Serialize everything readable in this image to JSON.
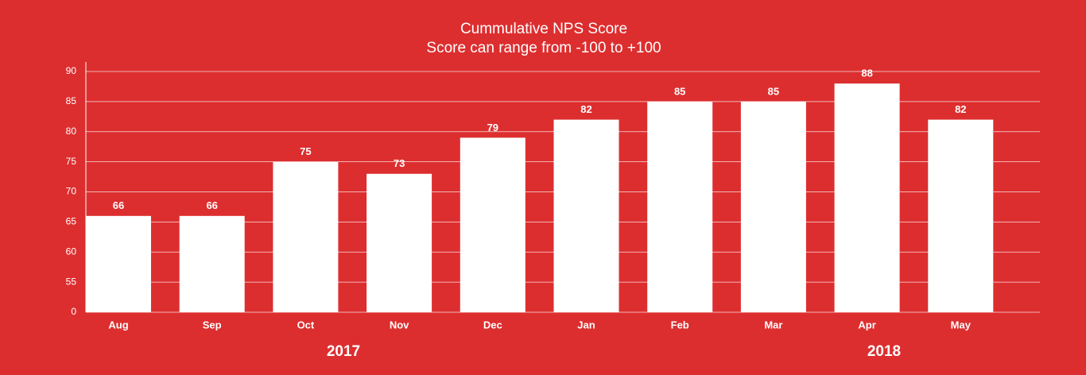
{
  "chart_data": {
    "type": "bar",
    "title": "Cummulative NPS Score",
    "subtitle": "Score can range from -100 to +100",
    "categories": [
      "Aug",
      "Sep",
      "Oct",
      "Nov",
      "Dec",
      "Jan",
      "Feb",
      "Mar",
      "Apr",
      "May"
    ],
    "values": [
      66,
      66,
      75,
      73,
      79,
      82,
      85,
      85,
      88,
      82
    ],
    "color": "#ffffff",
    "ylim": [
      0,
      90
    ],
    "yticks": [
      0,
      55,
      60,
      65,
      70,
      75,
      80,
      85,
      90
    ],
    "grid": true,
    "year_labels": [
      "2017",
      "2018"
    ]
  }
}
